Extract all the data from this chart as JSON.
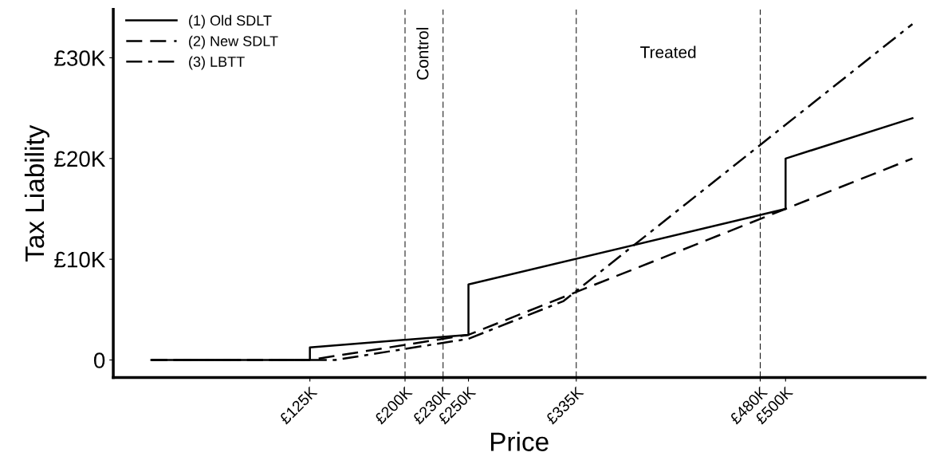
{
  "chart_data": {
    "type": "line",
    "xlabel": "Price",
    "ylabel": "Tax Liability",
    "series": [
      {
        "name": "(1) Old SDLT",
        "color": "#000000",
        "line_style": "solid",
        "x": [
          0,
          125000,
          125000,
          250000,
          250000,
          500000,
          500000,
          600000
        ],
        "values": [
          0,
          0,
          1250,
          2500,
          7500,
          15000,
          20000,
          24000
        ]
      },
      {
        "name": "(2) New SDLT",
        "color": "#000000",
        "line_style": "dashed",
        "x": [
          0,
          125000,
          250000,
          500000,
          600000
        ],
        "values": [
          0,
          0,
          2500,
          15000,
          20000
        ]
      },
      {
        "name": "(3) LBTT",
        "color": "#000000",
        "line_style": "dashdot",
        "x": [
          0,
          145000,
          250000,
          325000,
          600000
        ],
        "values": [
          0,
          0,
          2100,
          5850,
          33350
        ]
      }
    ],
    "xlim": [
      -30000,
      610000
    ],
    "ylim": [
      -1750,
      34800
    ],
    "xticks": [
      {
        "value": 125000,
        "label": "£125K"
      },
      {
        "value": 200000,
        "label": "£200K"
      },
      {
        "value": 230000,
        "label": "£230K"
      },
      {
        "value": 250000,
        "label": "£250K"
      },
      {
        "value": 335000,
        "label": "£335K"
      },
      {
        "value": 480000,
        "label": "£480K"
      },
      {
        "value": 500000,
        "label": "£500K"
      }
    ],
    "yticks": [
      0,
      {
        "value": 10000,
        "label": "£10K"
      },
      {
        "value": 20000,
        "label": "£20K"
      },
      {
        "value": 30000,
        "label": "£30K"
      }
    ],
    "ref_lines": [
      {
        "axis": "x",
        "value": 200000,
        "line_style": "dashed",
        "color": "#000000"
      },
      {
        "axis": "x",
        "value": 230000,
        "line_style": "dashed",
        "color": "#000000"
      },
      {
        "axis": "x",
        "value": 335000,
        "line_style": "dashed",
        "color": "#000000"
      },
      {
        "axis": "x",
        "value": 480000,
        "line_style": "dashed",
        "color": "#000000"
      }
    ],
    "annotations": [
      "Control",
      "Treated"
    ],
    "legend": "top left",
    "grid": false,
    "marker": "none"
  }
}
